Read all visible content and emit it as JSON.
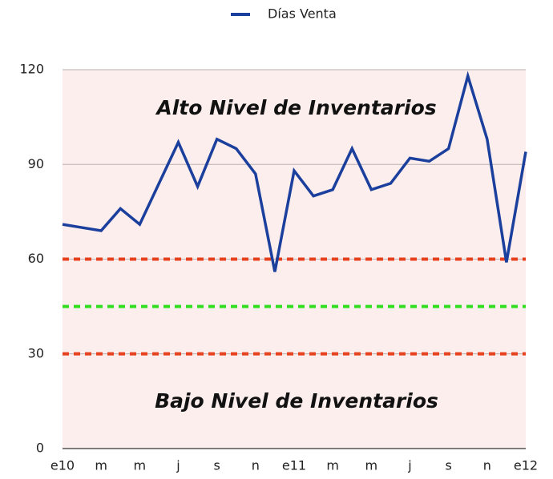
{
  "chart_data": {
    "type": "line",
    "categories": [
      "e10",
      null,
      "m",
      null,
      "m",
      null,
      "j",
      null,
      "s",
      null,
      "n",
      null,
      "e11",
      null,
      "m",
      null,
      "m",
      null,
      "j",
      null,
      "s",
      null,
      "n",
      null,
      "e12"
    ],
    "series": [
      {
        "name": "Días Venta",
        "color": "#1b3f9c",
        "values": [
          71,
          70,
          69,
          76,
          71,
          84,
          97,
          83,
          98,
          95,
          87,
          56,
          88,
          80,
          82,
          95,
          82,
          84,
          92,
          91,
          95,
          118,
          98,
          59,
          94
        ]
      }
    ],
    "ylim": [
      0,
      120
    ],
    "yticks": [
      0,
      30,
      60,
      90,
      120
    ],
    "grid": true,
    "legend": "top",
    "reference_lines": [
      {
        "value": 60,
        "color": "#e8401c"
      },
      {
        "value": 45,
        "color": "#33dd22"
      },
      {
        "value": 30,
        "color": "#e8401c"
      }
    ],
    "annotations": [
      "Alto Nivel de Inventarios",
      "Bajo Nivel de Inventarios"
    ]
  }
}
